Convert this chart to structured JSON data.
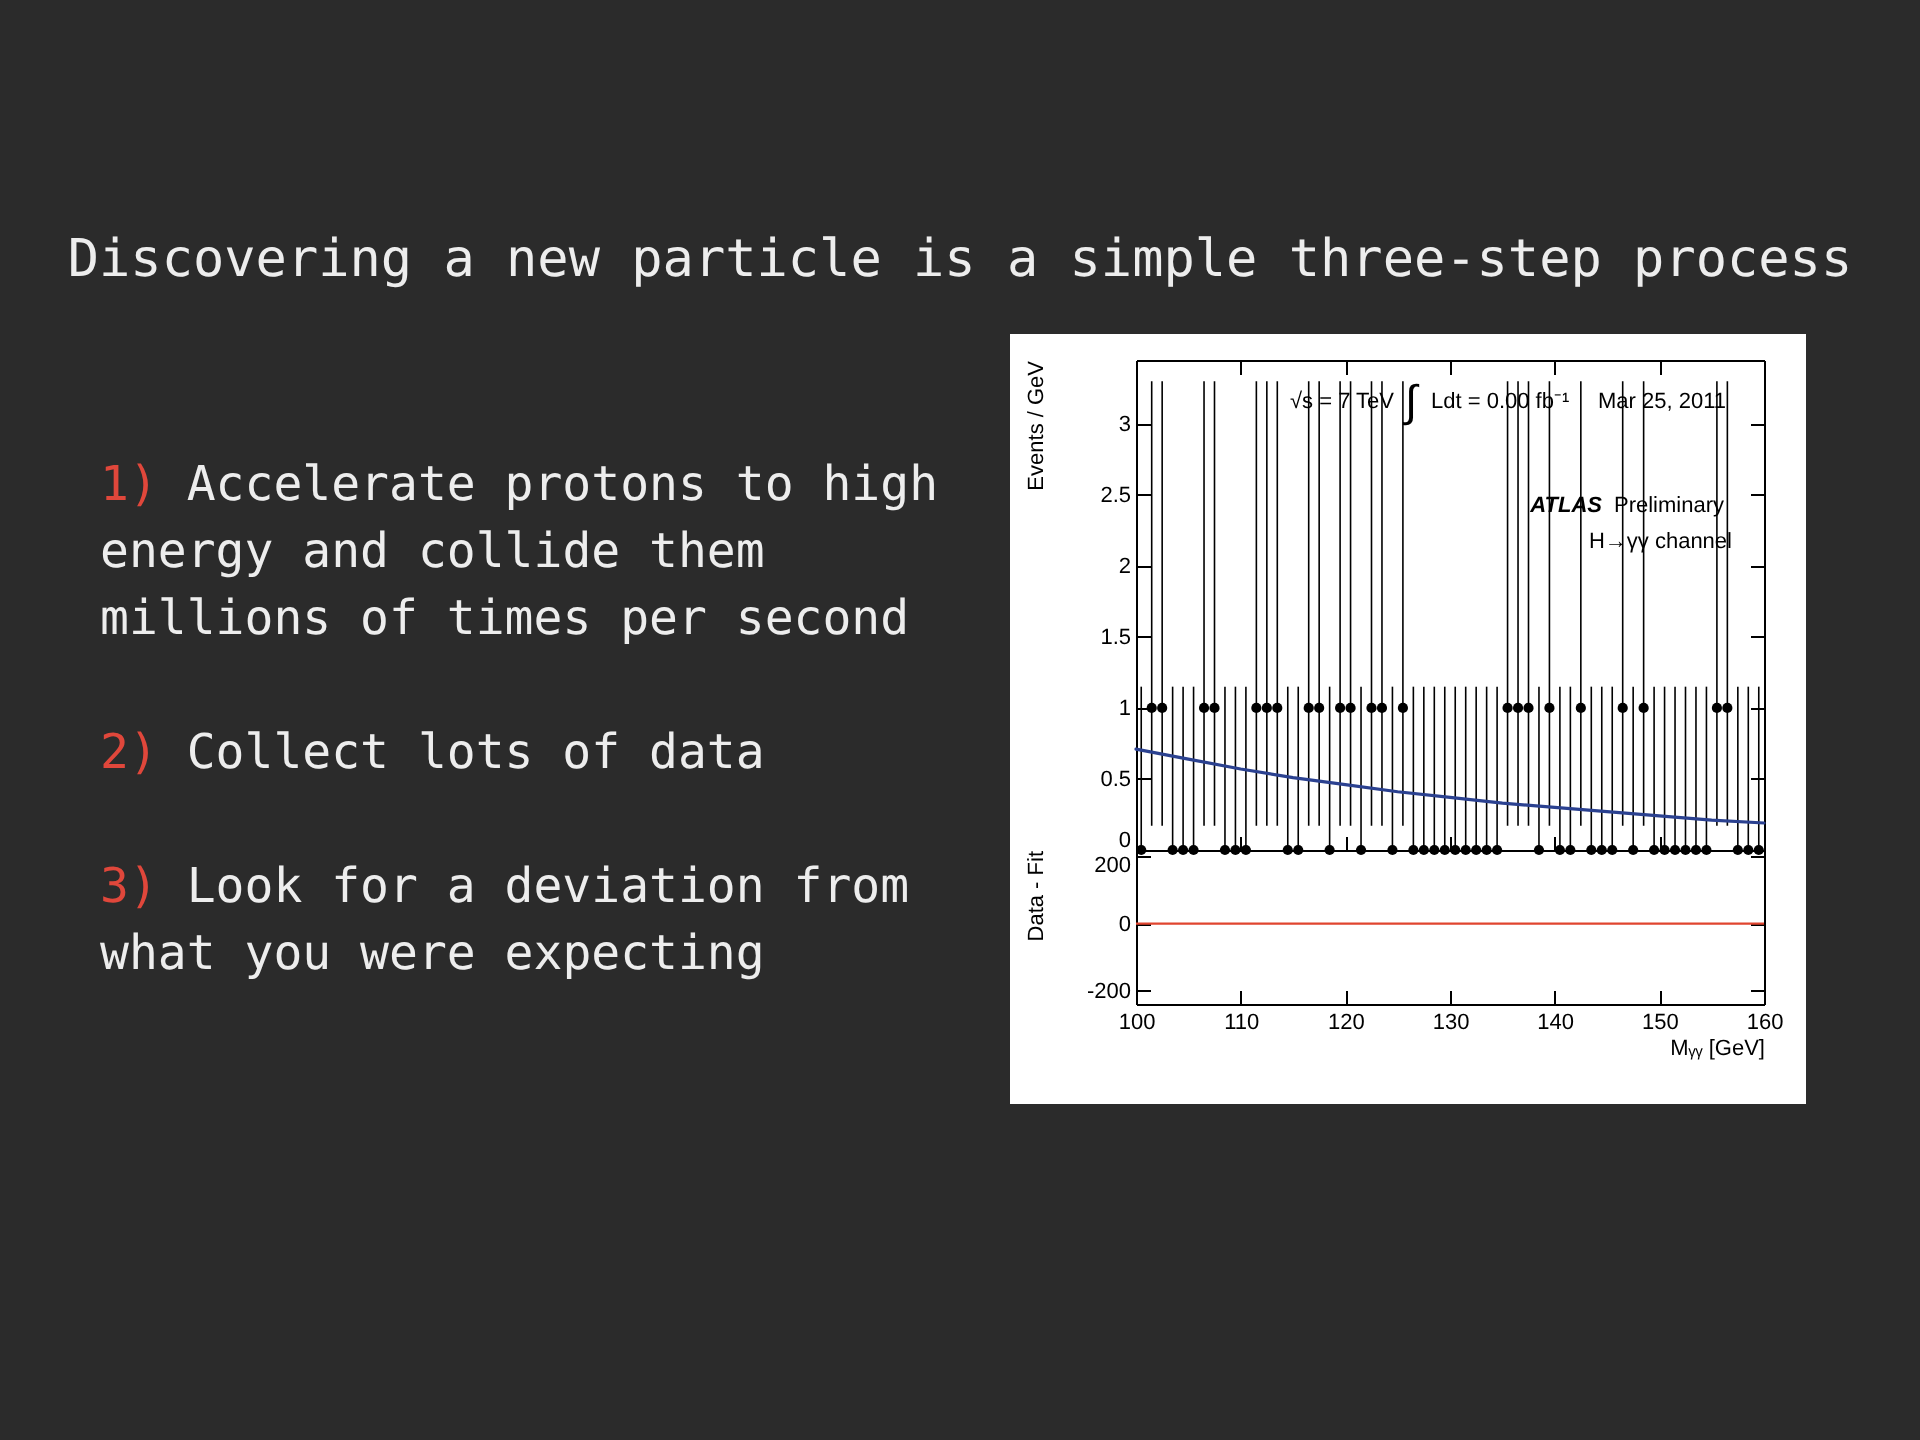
{
  "chart_data": [
    {
      "type": "other",
      "title": "Discovering a new particle is a simple three-step process",
      "annotations": [
        "1) Accelerate protons to high energy and collide them millions of times per second",
        "2) Collect lots of data",
        "3) Look for a deviation from what you were expecting"
      ]
    },
    {
      "type": "scatter",
      "ylabel": "Events / GeV",
      "x": [
        100.5,
        101.5,
        102.5,
        103.5,
        104.5,
        105.5,
        106.5,
        107.5,
        108.5,
        109.5,
        110.5,
        111.5,
        112.5,
        113.5,
        114.5,
        115.5,
        116.5,
        117.5,
        118.5,
        119.5,
        120.5,
        121.5,
        122.5,
        123.5,
        124.5,
        125.5,
        126.5,
        127.5,
        128.5,
        129.5,
        130.5,
        131.5,
        132.5,
        133.5,
        134.5,
        135.5,
        136.5,
        137.5,
        138.5,
        139.5,
        140.5,
        141.5,
        142.5,
        143.5,
        144.5,
        145.5,
        146.5,
        147.5,
        148.5,
        149.5,
        150.5,
        151.5,
        152.5,
        153.5,
        154.5,
        155.5,
        156.5,
        157.5,
        158.5,
        159.5
      ],
      "series": [
        {
          "color": "#000000",
          "marker": "circle",
          "values": [
            0,
            1,
            1,
            0,
            0,
            0,
            1,
            1,
            0,
            0,
            0,
            1,
            1,
            1,
            0,
            0,
            1,
            1,
            0,
            1,
            1,
            0,
            1,
            1,
            0,
            1,
            0,
            0,
            0,
            0,
            0,
            0,
            0,
            0,
            0,
            1,
            1,
            1,
            0,
            1,
            0,
            0,
            1,
            0,
            0,
            0,
            1,
            0,
            1,
            0,
            0,
            0,
            0,
            0,
            0,
            1,
            1,
            0,
            0,
            0
          ],
          "errors": [
            [
              0,
              1.15
            ],
            [
              0.17,
              3.3
            ],
            [
              0.17,
              3.3
            ],
            [
              0,
              1.15
            ],
            [
              0,
              1.15
            ],
            [
              0,
              1.15
            ],
            [
              0.17,
              3.3
            ],
            [
              0.17,
              3.3
            ],
            [
              0,
              1.15
            ],
            [
              0,
              1.15
            ],
            [
              0,
              1.15
            ],
            [
              0.17,
              3.3
            ],
            [
              0.17,
              3.3
            ],
            [
              0.17,
              3.3
            ],
            [
              0,
              1.15
            ],
            [
              0,
              1.15
            ],
            [
              0.17,
              3.3
            ],
            [
              0.17,
              3.3
            ],
            [
              0,
              1.15
            ],
            [
              0.17,
              3.3
            ],
            [
              0.17,
              3.3
            ],
            [
              0,
              1.15
            ],
            [
              0.17,
              3.3
            ],
            [
              0.17,
              3.3
            ],
            [
              0,
              1.15
            ],
            [
              0.17,
              3.3
            ],
            [
              0,
              1.15
            ],
            [
              0,
              1.15
            ],
            [
              0,
              1.15
            ],
            [
              0,
              1.15
            ],
            [
              0,
              1.15
            ],
            [
              0,
              1.15
            ],
            [
              0,
              1.15
            ],
            [
              0,
              1.15
            ],
            [
              0,
              1.15
            ],
            [
              0.17,
              3.3
            ],
            [
              0.17,
              3.3
            ],
            [
              0.17,
              3.3
            ],
            [
              0,
              1.15
            ],
            [
              0.17,
              3.3
            ],
            [
              0,
              1.15
            ],
            [
              0,
              1.15
            ],
            [
              0.17,
              3.3
            ],
            [
              0,
              1.15
            ],
            [
              0,
              1.15
            ],
            [
              0,
              1.15
            ],
            [
              0.17,
              3.3
            ],
            [
              0,
              1.15
            ],
            [
              0.17,
              3.3
            ],
            [
              0,
              1.15
            ],
            [
              0,
              1.15
            ],
            [
              0,
              1.15
            ],
            [
              0,
              1.15
            ],
            [
              0,
              1.15
            ],
            [
              0,
              1.15
            ],
            [
              0.17,
              3.3
            ],
            [
              0.17,
              3.3
            ],
            [
              0,
              1.15
            ],
            [
              0,
              1.15
            ],
            [
              0,
              1.15
            ]
          ]
        },
        {
          "type": "line",
          "color": "#2b4190",
          "x": [
            100,
            105,
            110,
            115,
            120,
            125,
            130,
            135,
            140,
            145,
            150,
            155,
            160
          ],
          "values": [
            0.71,
            0.64,
            0.57,
            0.51,
            0.46,
            0.41,
            0.37,
            0.33,
            0.3,
            0.27,
            0.24,
            0.21,
            0.19
          ]
        }
      ],
      "xlim": [
        100,
        160
      ],
      "xticks": [
        100,
        110,
        120,
        130,
        140,
        150,
        160
      ],
      "ylim": [
        0,
        3.45
      ],
      "yticks": [
        0,
        0.5,
        1,
        1.5,
        2,
        2.5,
        3
      ],
      "tick_labels": "y",
      "annotations": [
        "√s = 7 TeV",
        "∫ Ldt = 0.00 fb⁻¹",
        "Mar 25, 2011",
        "ATLAS Preliminary",
        "H→γγ channel"
      ]
    },
    {
      "type": "line",
      "ylabel": "Data - Fit",
      "xlabel": "Mᵧᵧ [GeV]",
      "xlim": [
        100,
        160
      ],
      "xticks": [
        100,
        110,
        120,
        130,
        140,
        150,
        160
      ],
      "ylim": [
        -240,
        220
      ],
      "yticks": [
        -200,
        0,
        200
      ],
      "ref_lines": [
        {
          "axis": "y",
          "value": 0,
          "color": "#e0452f"
        }
      ]
    }
  ]
}
